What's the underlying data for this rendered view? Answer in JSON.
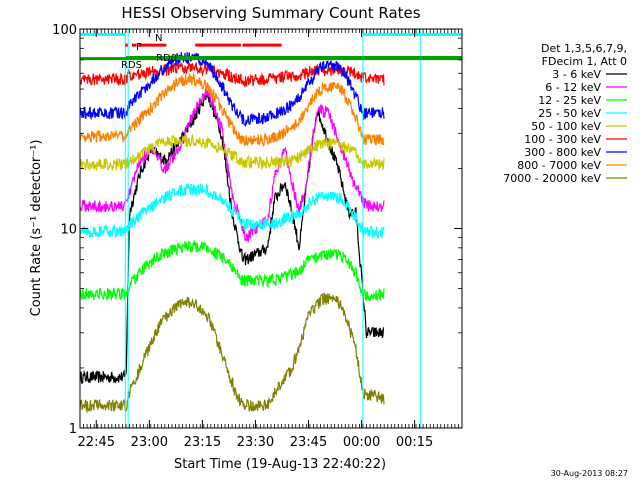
{
  "chart_data": {
    "type": "line",
    "title": "HESSI Observing Summary Count Rates",
    "xlabel": "Start Time (19-Aug-13 22:40:22)",
    "ylabel": "Count Rate (s⁻¹ detector⁻¹)",
    "yscale": "log",
    "ylim": [
      1,
      100
    ],
    "xlim_minutes": [
      0,
      108
    ],
    "x_ticks": [
      {
        "label": "22:45",
        "t": 4.6
      },
      {
        "label": "23:00",
        "t": 19.6
      },
      {
        "label": "23:15",
        "t": 34.6
      },
      {
        "label": "23:30",
        "t": 49.6
      },
      {
        "label": "23:45",
        "t": 64.6
      },
      {
        "label": "00:00",
        "t": 79.6
      },
      {
        "label": "00:15",
        "t": 94.6
      }
    ],
    "y_ticks": [
      {
        "label": "1",
        "v": 1
      },
      {
        "label": "10",
        "v": 10
      },
      {
        "label": "100",
        "v": 100
      }
    ],
    "legend_header": [
      "Det 1,3,5,6,7,9,",
      "FDecim 1, Att 0"
    ],
    "legend_position": "right",
    "series": [
      {
        "name": "3 - 6 keV",
        "color": "#000000",
        "x": [
          0,
          13,
          14,
          17,
          20,
          24,
          28,
          32,
          36,
          40,
          43,
          46,
          47,
          53,
          55,
          58,
          60,
          62,
          64,
          67,
          70,
          73,
          76,
          78,
          81,
          86
        ],
        "y": [
          1.8,
          1.8,
          12,
          19,
          25,
          22,
          27,
          35,
          48,
          30,
          12,
          7,
          7,
          8,
          14,
          17,
          12,
          8,
          16,
          40,
          28,
          20,
          12,
          12,
          3,
          3
        ]
      },
      {
        "name": "6 - 12 keV",
        "color": "#ff00ff",
        "x": [
          0,
          13,
          14,
          17,
          20,
          24,
          28,
          32,
          36,
          40,
          43,
          46,
          47,
          53,
          55,
          58,
          60,
          62,
          64,
          67,
          70,
          73,
          76,
          78,
          81,
          86
        ],
        "y": [
          13,
          13,
          15,
          22,
          25,
          20,
          25,
          38,
          50,
          32,
          15,
          10,
          9,
          11,
          18,
          25,
          17,
          12,
          17,
          40,
          38,
          28,
          20,
          16,
          13,
          13
        ]
      },
      {
        "name": "12 - 25 keV",
        "color": "#00ff00",
        "x": [
          0,
          13,
          14,
          18,
          23,
          28,
          32,
          36,
          40,
          44,
          46,
          47,
          53,
          56,
          60,
          62,
          65,
          69,
          74,
          78,
          80,
          86
        ],
        "y": [
          4.7,
          4.7,
          5.2,
          6.3,
          7.4,
          8,
          8.2,
          8.0,
          7.2,
          6.2,
          5.4,
          5.5,
          5.5,
          5.6,
          5.9,
          6.2,
          7,
          7.5,
          7.3,
          6,
          4.7,
          4.7
        ]
      },
      {
        "name": "25 - 50 keV",
        "color": "#00ffff",
        "x": [
          0,
          13,
          14,
          18,
          23,
          28,
          32,
          36,
          40,
          44,
          46,
          47,
          53,
          56,
          60,
          62,
          65,
          69,
          74,
          78,
          80,
          86
        ],
        "y": [
          9.7,
          9.7,
          10.4,
          12,
          14,
          15.5,
          15.8,
          15.5,
          14,
          12,
          10.5,
          10.5,
          10.5,
          10.8,
          11.5,
          12,
          13.5,
          14.8,
          14,
          11.5,
          9.6,
          9.6
        ]
      },
      {
        "name": "50 - 100 keV",
        "color": "#c8c800",
        "x": [
          0,
          13,
          14,
          18,
          23,
          28,
          32,
          36,
          40,
          44,
          46,
          47,
          53,
          56,
          60,
          62,
          65,
          69,
          74,
          78,
          80,
          86
        ],
        "y": [
          21,
          21,
          22,
          24,
          27,
          27.5,
          27.5,
          27,
          25,
          23,
          21.5,
          21.5,
          21.5,
          21.5,
          22,
          23,
          25,
          27,
          26,
          24,
          21,
          21
        ]
      },
      {
        "name": "100 - 300 keV",
        "color": "#ff0000",
        "x": [
          0,
          13,
          14,
          18,
          23,
          28,
          32,
          36,
          40,
          44,
          46,
          47,
          53,
          56,
          60,
          62,
          65,
          69,
          74,
          78,
          80,
          86
        ],
        "y": [
          56,
          56,
          58,
          60,
          62,
          64,
          64,
          63,
          60,
          57,
          55,
          55,
          56,
          57,
          58,
          59,
          61,
          62,
          62,
          60,
          57,
          56
        ]
      },
      {
        "name": "300 - 800 keV",
        "color": "#0000ff",
        "x": [
          0,
          13,
          14,
          18,
          23,
          28,
          32,
          36,
          40,
          44,
          46,
          47,
          53,
          56,
          60,
          62,
          65,
          69,
          74,
          78,
          80,
          86
        ],
        "y": [
          38,
          38,
          42,
          50,
          62,
          72,
          72,
          68,
          52,
          39,
          35,
          35,
          36,
          38,
          42,
          46,
          55,
          66,
          64,
          46,
          38,
          38
        ]
      },
      {
        "name": "800 - 7000 keV",
        "color": "#ff8000",
        "x": [
          0,
          13,
          14,
          18,
          23,
          28,
          32,
          36,
          40,
          44,
          46,
          47,
          53,
          56,
          60,
          62,
          65,
          69,
          74,
          78,
          80,
          86
        ],
        "y": [
          29,
          29,
          31,
          37,
          46,
          55,
          56,
          52,
          40,
          30,
          27.5,
          27.5,
          28,
          29,
          32,
          35,
          43,
          52,
          50,
          36,
          28,
          28
        ]
      },
      {
        "name": "7000 - 20000 keV",
        "color": "#808000",
        "x": [
          0,
          13,
          14,
          18,
          23,
          28,
          32,
          36,
          40,
          44,
          46,
          47,
          53,
          56,
          60,
          62,
          65,
          69,
          74,
          78,
          80,
          86
        ],
        "y": [
          1.3,
          1.3,
          1.5,
          2.2,
          3.4,
          4.2,
          4.3,
          3.7,
          2.4,
          1.5,
          1.3,
          1.3,
          1.3,
          1.6,
          2,
          2.6,
          3.8,
          4.5,
          4.2,
          2.5,
          1.5,
          1.4
        ]
      }
    ],
    "flags": [
      {
        "label": "N",
        "color": "#00ffff",
        "level": 94,
        "segments": [
          [
            0,
            12.8
          ],
          [
            80,
            108
          ]
        ]
      },
      {
        "label": "F",
        "color": "#ff0000",
        "level": 83,
        "segments": [
          [
            12.8,
            13.5
          ],
          [
            14.7,
            16
          ],
          [
            16.5,
            24.4
          ],
          [
            32.6,
            45.5
          ],
          [
            46,
            57
          ]
        ]
      },
      {
        "label": "RD0",
        "color": "#00a000",
        "level": 71,
        "segments": [
          [
            0,
            108
          ]
        ]
      },
      {
        "label": "RDS",
        "color": "#00a000",
        "level": 72,
        "segments": [
          [
            13.1,
            108
          ]
        ]
      }
    ],
    "vertical_markers": [
      {
        "t": 12.8,
        "color": "#00ffff"
      },
      {
        "t": 13.6,
        "color": "#00ffff"
      },
      {
        "t": 80.0,
        "color": "#00ffff"
      },
      {
        "t": 96.2,
        "color": "#00ffff"
      }
    ],
    "timestamp": "30-Aug-2013 08:27"
  }
}
